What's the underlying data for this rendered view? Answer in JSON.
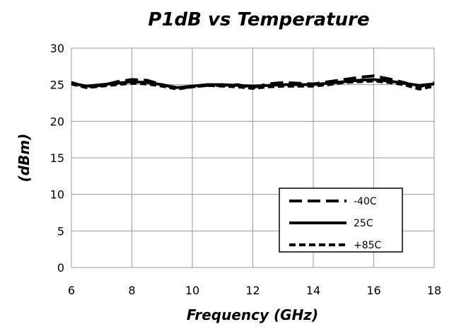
{
  "chart_data": {
    "type": "line",
    "title": "P1dB vs Temperature",
    "xlabel": "Frequency (GHz)",
    "ylabel": "(dBm)",
    "xlim": [
      6,
      18
    ],
    "ylim": [
      0,
      30
    ],
    "xticks": [
      6,
      8,
      10,
      12,
      14,
      16,
      18
    ],
    "yticks": [
      0,
      5,
      10,
      15,
      20,
      25,
      30
    ],
    "grid": true,
    "legend_position": "lower-right",
    "x": [
      6.0,
      6.5,
      7.0,
      7.5,
      8.0,
      8.5,
      9.0,
      9.5,
      10.0,
      10.5,
      11.0,
      11.5,
      12.0,
      12.5,
      13.0,
      13.5,
      14.0,
      14.5,
      15.0,
      15.5,
      16.0,
      16.5,
      17.0,
      17.5,
      18.0
    ],
    "series": [
      {
        "name": "-40C",
        "dash": "long-dash",
        "color": "#000000",
        "values": [
          25.3,
          24.7,
          24.9,
          25.4,
          25.7,
          25.6,
          25.0,
          24.5,
          24.7,
          24.9,
          24.9,
          25.0,
          24.6,
          25.1,
          25.3,
          25.2,
          25.1,
          25.4,
          25.7,
          26.0,
          26.2,
          25.8,
          25.3,
          24.7,
          25.3
        ]
      },
      {
        "name": "25C",
        "dash": "solid",
        "color": "#000000",
        "values": [
          25.2,
          24.8,
          25.0,
          25.2,
          25.4,
          25.3,
          25.0,
          24.6,
          24.8,
          25.0,
          25.0,
          24.9,
          24.8,
          24.9,
          25.0,
          25.0,
          25.0,
          25.2,
          25.4,
          25.6,
          25.7,
          25.5,
          25.2,
          24.9,
          25.1
        ]
      },
      {
        "name": "+85C",
        "dash": "short-dash",
        "color": "#000000",
        "values": [
          25.1,
          24.6,
          24.8,
          25.0,
          25.2,
          25.1,
          24.8,
          24.4,
          24.7,
          24.9,
          24.8,
          24.7,
          24.5,
          24.7,
          24.8,
          24.8,
          24.8,
          25.0,
          25.3,
          25.4,
          25.5,
          25.3,
          25.0,
          24.4,
          24.8
        ]
      }
    ]
  }
}
